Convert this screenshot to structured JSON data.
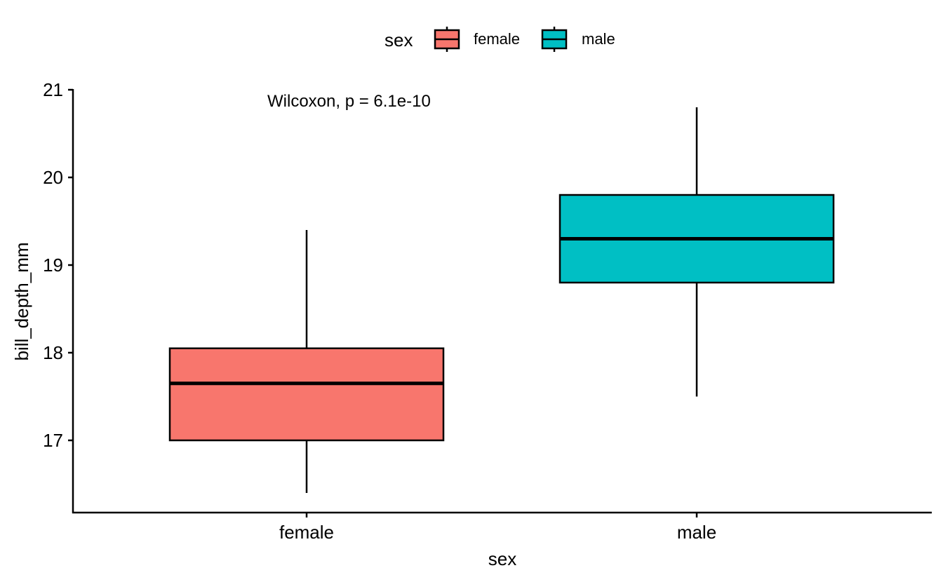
{
  "chart_data": {
    "type": "box",
    "xlabel": "sex",
    "ylabel": "bill_depth_mm",
    "categories": [
      "female",
      "male"
    ],
    "ylim": [
      16.2,
      21.0
    ],
    "yticks": [
      17,
      18,
      19,
      20,
      21
    ],
    "legend": {
      "title": "sex",
      "position": "top",
      "entries": [
        {
          "label": "female",
          "color": "#F8766D"
        },
        {
          "label": "male",
          "color": "#00BFC4"
        }
      ]
    },
    "boxes": [
      {
        "category": "female",
        "whisker_low": 16.4,
        "q1": 17.0,
        "median": 17.65,
        "q3": 18.05,
        "whisker_high": 19.4,
        "color": "#F8766D"
      },
      {
        "category": "male",
        "whisker_low": 17.5,
        "q1": 18.8,
        "median": 19.3,
        "q3": 19.8,
        "whisker_high": 20.8,
        "color": "#00BFC4"
      }
    ],
    "annotation": "Wilcoxon, p = 6.1e-10",
    "grid": false
  }
}
